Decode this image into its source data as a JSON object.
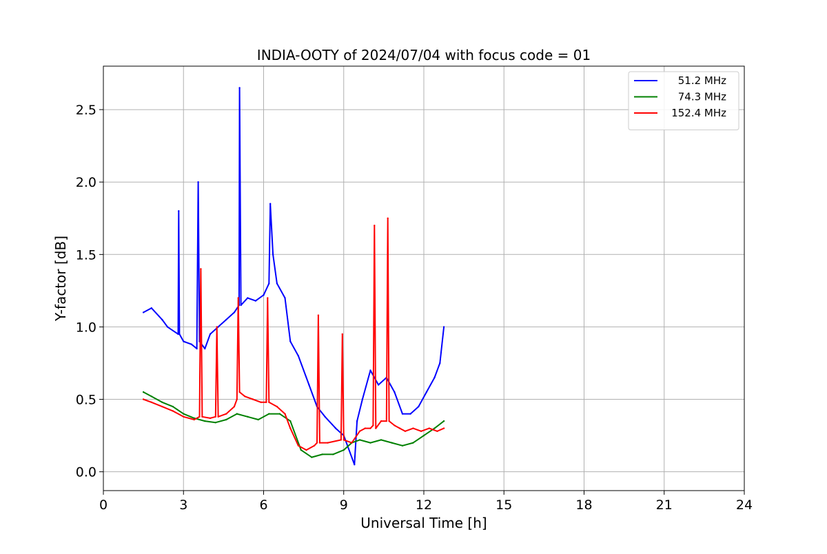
{
  "chart_data": {
    "type": "line",
    "title": "INDIA-OOTY of 2024/07/04 with focus code = 01",
    "xlabel": "Universal Time [h]",
    "ylabel": "Y-factor [dB]",
    "xlim": [
      0,
      24
    ],
    "ylim": [
      -0.13,
      2.8
    ],
    "xticks": [
      0,
      3,
      6,
      9,
      12,
      15,
      18,
      21,
      24
    ],
    "xtick_labels": [
      "0",
      "3",
      "6",
      "9",
      "12",
      "15",
      "18",
      "21",
      "24"
    ],
    "yticks": [
      0.0,
      0.5,
      1.0,
      1.5,
      2.0,
      2.5
    ],
    "ytick_labels": [
      "0.0",
      "0.5",
      "1.0",
      "1.5",
      "2.0",
      "2.5"
    ],
    "grid": true,
    "legend_position": "top-right",
    "series": [
      {
        "name": "51.2 MHz",
        "color": "#0000ff",
        "x": [
          1.5,
          1.8,
          2.2,
          2.4,
          2.8,
          2.82,
          2.85,
          3.0,
          3.3,
          3.5,
          3.55,
          3.6,
          3.8,
          4.0,
          4.3,
          4.6,
          4.9,
          5.08,
          5.1,
          5.15,
          5.4,
          5.7,
          6.0,
          6.2,
          6.25,
          6.35,
          6.5,
          6.8,
          7.0,
          7.3,
          7.7,
          8.0,
          8.3,
          8.7,
          9.0,
          9.4,
          9.5,
          9.7,
          10.0,
          10.3,
          10.6,
          10.9,
          11.2,
          11.5,
          11.8,
          12.1,
          12.4,
          12.6,
          12.75
        ],
        "values": [
          1.1,
          1.13,
          1.05,
          1.0,
          0.95,
          1.8,
          0.95,
          0.9,
          0.88,
          0.85,
          2.0,
          0.9,
          0.85,
          0.95,
          1.0,
          1.05,
          1.1,
          1.15,
          2.65,
          1.15,
          1.2,
          1.18,
          1.22,
          1.3,
          1.85,
          1.5,
          1.3,
          1.2,
          0.9,
          0.8,
          0.6,
          0.45,
          0.38,
          0.3,
          0.25,
          0.05,
          0.35,
          0.5,
          0.7,
          0.6,
          0.65,
          0.55,
          0.4,
          0.4,
          0.45,
          0.55,
          0.65,
          0.75,
          1.0
        ]
      },
      {
        "name": "74.3 MHz",
        "color": "#008000",
        "x": [
          1.5,
          1.8,
          2.2,
          2.6,
          3.0,
          3.4,
          3.8,
          4.2,
          4.6,
          5.0,
          5.4,
          5.8,
          6.2,
          6.6,
          7.0,
          7.4,
          7.8,
          8.2,
          8.6,
          9.0,
          9.3,
          9.6,
          10.0,
          10.4,
          10.8,
          11.2,
          11.6,
          12.0,
          12.4,
          12.75
        ],
        "values": [
          0.55,
          0.52,
          0.48,
          0.45,
          0.4,
          0.37,
          0.35,
          0.34,
          0.36,
          0.4,
          0.38,
          0.36,
          0.4,
          0.4,
          0.35,
          0.15,
          0.1,
          0.12,
          0.12,
          0.15,
          0.2,
          0.22,
          0.2,
          0.22,
          0.2,
          0.18,
          0.2,
          0.25,
          0.3,
          0.35
        ]
      },
      {
        "name": "152.4 MHz",
        "color": "#ff0000",
        "x": [
          1.5,
          1.8,
          2.2,
          2.6,
          3.0,
          3.4,
          3.6,
          3.65,
          3.7,
          4.0,
          4.2,
          4.25,
          4.3,
          4.6,
          4.9,
          5.0,
          5.05,
          5.1,
          5.3,
          5.6,
          5.9,
          6.1,
          6.15,
          6.2,
          6.5,
          6.8,
          7.0,
          7.3,
          7.6,
          7.9,
          8.0,
          8.05,
          8.1,
          8.4,
          8.9,
          8.95,
          9.0,
          9.3,
          9.6,
          9.8,
          10.0,
          10.1,
          10.15,
          10.2,
          10.4,
          10.6,
          10.65,
          10.7,
          10.9,
          11.1,
          11.3,
          11.6,
          11.9,
          12.2,
          12.5,
          12.75
        ],
        "values": [
          0.5,
          0.48,
          0.45,
          0.42,
          0.38,
          0.36,
          0.38,
          1.4,
          0.38,
          0.37,
          0.38,
          1.0,
          0.38,
          0.4,
          0.45,
          0.5,
          1.2,
          0.55,
          0.52,
          0.5,
          0.48,
          0.48,
          1.2,
          0.48,
          0.45,
          0.4,
          0.3,
          0.18,
          0.15,
          0.18,
          0.2,
          1.08,
          0.2,
          0.2,
          0.22,
          0.95,
          0.22,
          0.2,
          0.28,
          0.3,
          0.3,
          0.32,
          1.7,
          0.3,
          0.35,
          0.35,
          1.75,
          0.35,
          0.32,
          0.3,
          0.28,
          0.3,
          0.28,
          0.3,
          0.28,
          0.3
        ]
      }
    ]
  }
}
